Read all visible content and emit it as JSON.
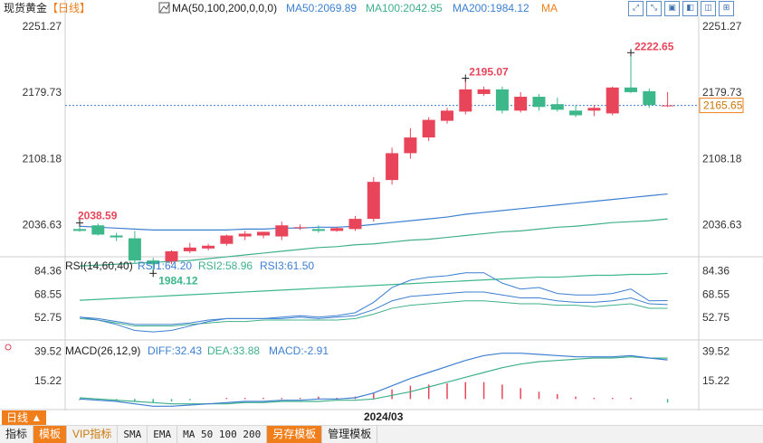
{
  "header": {
    "instrument": "现货黄金",
    "period_tag": "【日线】",
    "ma_label": "MA(50,100,200,0,0,0)",
    "ma50": "MA50:2069.89",
    "ma100": "MA100:2042.95",
    "ma200": "MA200:1984.12",
    "ma_more": "MA"
  },
  "rsi_header": {
    "label": "RSI(14,60,40)",
    "rsi1": "RSI1:64.20",
    "rsi2": "RSI2:58.96",
    "rsi3": "RSI3:61.50"
  },
  "macd_header": {
    "label": "MACD(26,12,9)",
    "diff": "DIFF:32.43",
    "dea": "DEA:33.88",
    "macd": "MACD:-2.91"
  },
  "current_price": "2165.65",
  "x_date_label": "2024/03",
  "period_button": "日线 ▲",
  "bottom_tabs": [
    "指标",
    "模板",
    "VIP指标",
    "SMA",
    "EMA",
    "MA 50 100 200",
    "另存模板",
    "管理模板"
  ],
  "toolbar_icons": [
    "expand-icon",
    "shrink-icon",
    "window-icon",
    "window-icon",
    "window-icon",
    "window-icon"
  ],
  "colors": {
    "up": "#e8455a",
    "down": "#3cb88b",
    "ma50": "#3d7fd0",
    "ma100": "#3fb08a",
    "ma200": "#3cb88b",
    "rsi1": "#3d7fd0",
    "rsi2": "#3fb08a",
    "rsi3": "#3d7fd0",
    "diff": "#3d7fd0",
    "dea": "#3fb08a",
    "accent": "#f07f1b"
  },
  "chart_data": {
    "type": "candlestick",
    "price_axis": {
      "ticks": [
        2251.27,
        2179.73,
        2108.18,
        2036.63
      ],
      "ylim": [
        2004,
        2262
      ]
    },
    "annotations": {
      "high": "2222.65",
      "mid_high": "2195.07",
      "left_high": "2038.59",
      "low": "1984.12"
    },
    "candles": [
      {
        "o": 2032,
        "h": 2039,
        "c": 2030,
        "l": 2029
      },
      {
        "o": 2036,
        "h": 2038,
        "c": 2026,
        "l": 2025
      },
      {
        "o": 2025,
        "h": 2028,
        "c": 2023,
        "l": 2019
      },
      {
        "o": 2022,
        "h": 2030,
        "c": 1998,
        "l": 1995
      },
      {
        "o": 1998,
        "h": 2001,
        "c": 1994,
        "l": 1984.12
      },
      {
        "o": 1997,
        "h": 2009,
        "c": 2008,
        "l": 1994
      },
      {
        "o": 2008,
        "h": 2017,
        "c": 2012,
        "l": 2006
      },
      {
        "o": 2011,
        "h": 2016,
        "c": 2014,
        "l": 2009
      },
      {
        "o": 2016,
        "h": 2026,
        "c": 2025,
        "l": 2014
      },
      {
        "o": 2024,
        "h": 2030,
        "c": 2027,
        "l": 2020
      },
      {
        "o": 2025,
        "h": 2029,
        "c": 2029,
        "l": 2022
      },
      {
        "o": 2024,
        "h": 2040,
        "c": 2036,
        "l": 2020
      },
      {
        "o": 2033,
        "h": 2037,
        "c": 2034,
        "l": 2031
      },
      {
        "o": 2032,
        "h": 2036,
        "c": 2030,
        "l": 2028
      },
      {
        "o": 2030,
        "h": 2034,
        "c": 2033,
        "l": 2029
      },
      {
        "o": 2032,
        "h": 2046,
        "c": 2043,
        "l": 2030
      },
      {
        "o": 2043,
        "h": 2088,
        "c": 2083,
        "l": 2040
      },
      {
        "o": 2085,
        "h": 2120,
        "c": 2114,
        "l": 2080
      },
      {
        "o": 2114,
        "h": 2141,
        "c": 2131,
        "l": 2108
      },
      {
        "o": 2131,
        "h": 2153,
        "c": 2150,
        "l": 2127
      },
      {
        "o": 2149,
        "h": 2163,
        "c": 2160,
        "l": 2146
      },
      {
        "o": 2159,
        "h": 2195.07,
        "c": 2183,
        "l": 2156
      },
      {
        "o": 2178,
        "h": 2186,
        "c": 2183,
        "l": 2176
      },
      {
        "o": 2183,
        "h": 2186,
        "c": 2160,
        "l": 2157
      },
      {
        "o": 2160,
        "h": 2180,
        "c": 2175,
        "l": 2158
      },
      {
        "o": 2175,
        "h": 2178,
        "c": 2164,
        "l": 2160
      },
      {
        "o": 2167,
        "h": 2174,
        "c": 2161,
        "l": 2159
      },
      {
        "o": 2160,
        "h": 2166,
        "c": 2155,
        "l": 2153
      },
      {
        "o": 2160,
        "h": 2166,
        "c": 2163,
        "l": 2154
      },
      {
        "o": 2157,
        "h": 2186,
        "c": 2185,
        "l": 2155
      },
      {
        "o": 2185,
        "h": 2222.65,
        "c": 2180,
        "l": 2179
      },
      {
        "o": 2181,
        "h": 2184,
        "c": 2166,
        "l": 2163
      },
      {
        "o": 2165,
        "h": 2180,
        "c": 2165.65,
        "l": 2164
      }
    ],
    "ma50": [
      2035,
      2034,
      2033,
      2032,
      2031,
      2031,
      2031,
      2031,
      2031,
      2032,
      2032,
      2033,
      2033,
      2034,
      2034,
      2035,
      2037,
      2039,
      2041,
      2043,
      2045,
      2048,
      2050,
      2052,
      2054,
      2056,
      2058,
      2060,
      2062,
      2064,
      2066,
      2068,
      2069.89
    ],
    "ma100": [
      1992,
      1993,
      1994,
      1995,
      1996,
      1997,
      1998,
      2000,
      2002,
      2004,
      2006,
      2008,
      2010,
      2012,
      2013,
      2015,
      2016,
      2018,
      2020,
      2021,
      2023,
      2025,
      2027,
      2029,
      2030,
      2032,
      2034,
      2035,
      2037,
      2039,
      2040,
      2041,
      2042.95
    ],
    "ma200": [
      1955,
      1956,
      1957,
      1958,
      1959,
      1960,
      1961,
      1962,
      1963,
      1964,
      1965,
      1966,
      1967,
      1968,
      1969,
      1970,
      1971,
      1972,
      1973,
      1974,
      1975,
      1976,
      1977,
      1978,
      1979,
      1980,
      1980,
      1981,
      1982,
      1982,
      1983,
      1983,
      1984.12
    ],
    "rsi_axis": {
      "ticks": [
        84.36,
        68.55,
        52.75
      ],
      "ylim": [
        40,
        92
      ]
    },
    "rsi1": [
      53,
      51,
      48,
      44,
      43,
      44,
      47,
      50,
      52,
      52,
      52,
      53,
      54,
      53,
      54,
      56,
      63,
      73,
      78,
      80,
      81,
      83,
      83,
      76,
      72,
      73,
      69,
      68,
      68,
      69,
      72,
      64,
      64.2
    ],
    "rsi2": [
      52,
      51,
      49,
      47,
      47,
      47,
      48,
      49,
      50,
      50,
      51,
      51,
      51,
      51,
      51,
      52,
      55,
      59,
      61,
      62,
      63,
      64,
      64,
      63,
      62,
      62,
      61,
      61,
      60,
      61,
      62,
      59,
      58.96
    ],
    "rsi3": [
      53,
      52,
      50,
      48,
      48,
      48,
      49,
      51,
      52,
      52,
      52,
      52,
      53,
      52,
      53,
      54,
      58,
      64,
      67,
      68,
      69,
      70,
      70,
      68,
      66,
      66,
      64,
      63,
      63,
      64,
      66,
      62,
      61.5
    ],
    "macd_axis": {
      "ticks": [
        39.52,
        15.22
      ],
      "ylim": [
        -8,
        46
      ]
    },
    "diff": [
      0,
      -1,
      -2,
      -4,
      -6,
      -6,
      -5,
      -4,
      -3,
      -2,
      -2,
      -1,
      -1,
      0,
      0,
      1,
      5,
      11,
      17,
      22,
      27,
      32,
      36,
      38,
      38,
      37,
      36,
      35,
      35,
      35,
      36,
      34,
      32.43
    ],
    "dea": [
      1,
      0,
      -1,
      -2,
      -3,
      -4,
      -4,
      -4,
      -4,
      -3,
      -3,
      -2,
      -2,
      -2,
      -1,
      -1,
      0,
      3,
      6,
      10,
      14,
      18,
      22,
      26,
      29,
      31,
      32,
      33,
      34,
      34,
      35,
      34,
      33.88
    ],
    "macd": [
      -1,
      -1,
      -1,
      -2,
      -3,
      -2,
      -1,
      0,
      1,
      1,
      1,
      1,
      1,
      2,
      1,
      2,
      5,
      8,
      11,
      12,
      13,
      14,
      14,
      12,
      9,
      6,
      4,
      2,
      1,
      1,
      1,
      0,
      -2.91
    ]
  }
}
